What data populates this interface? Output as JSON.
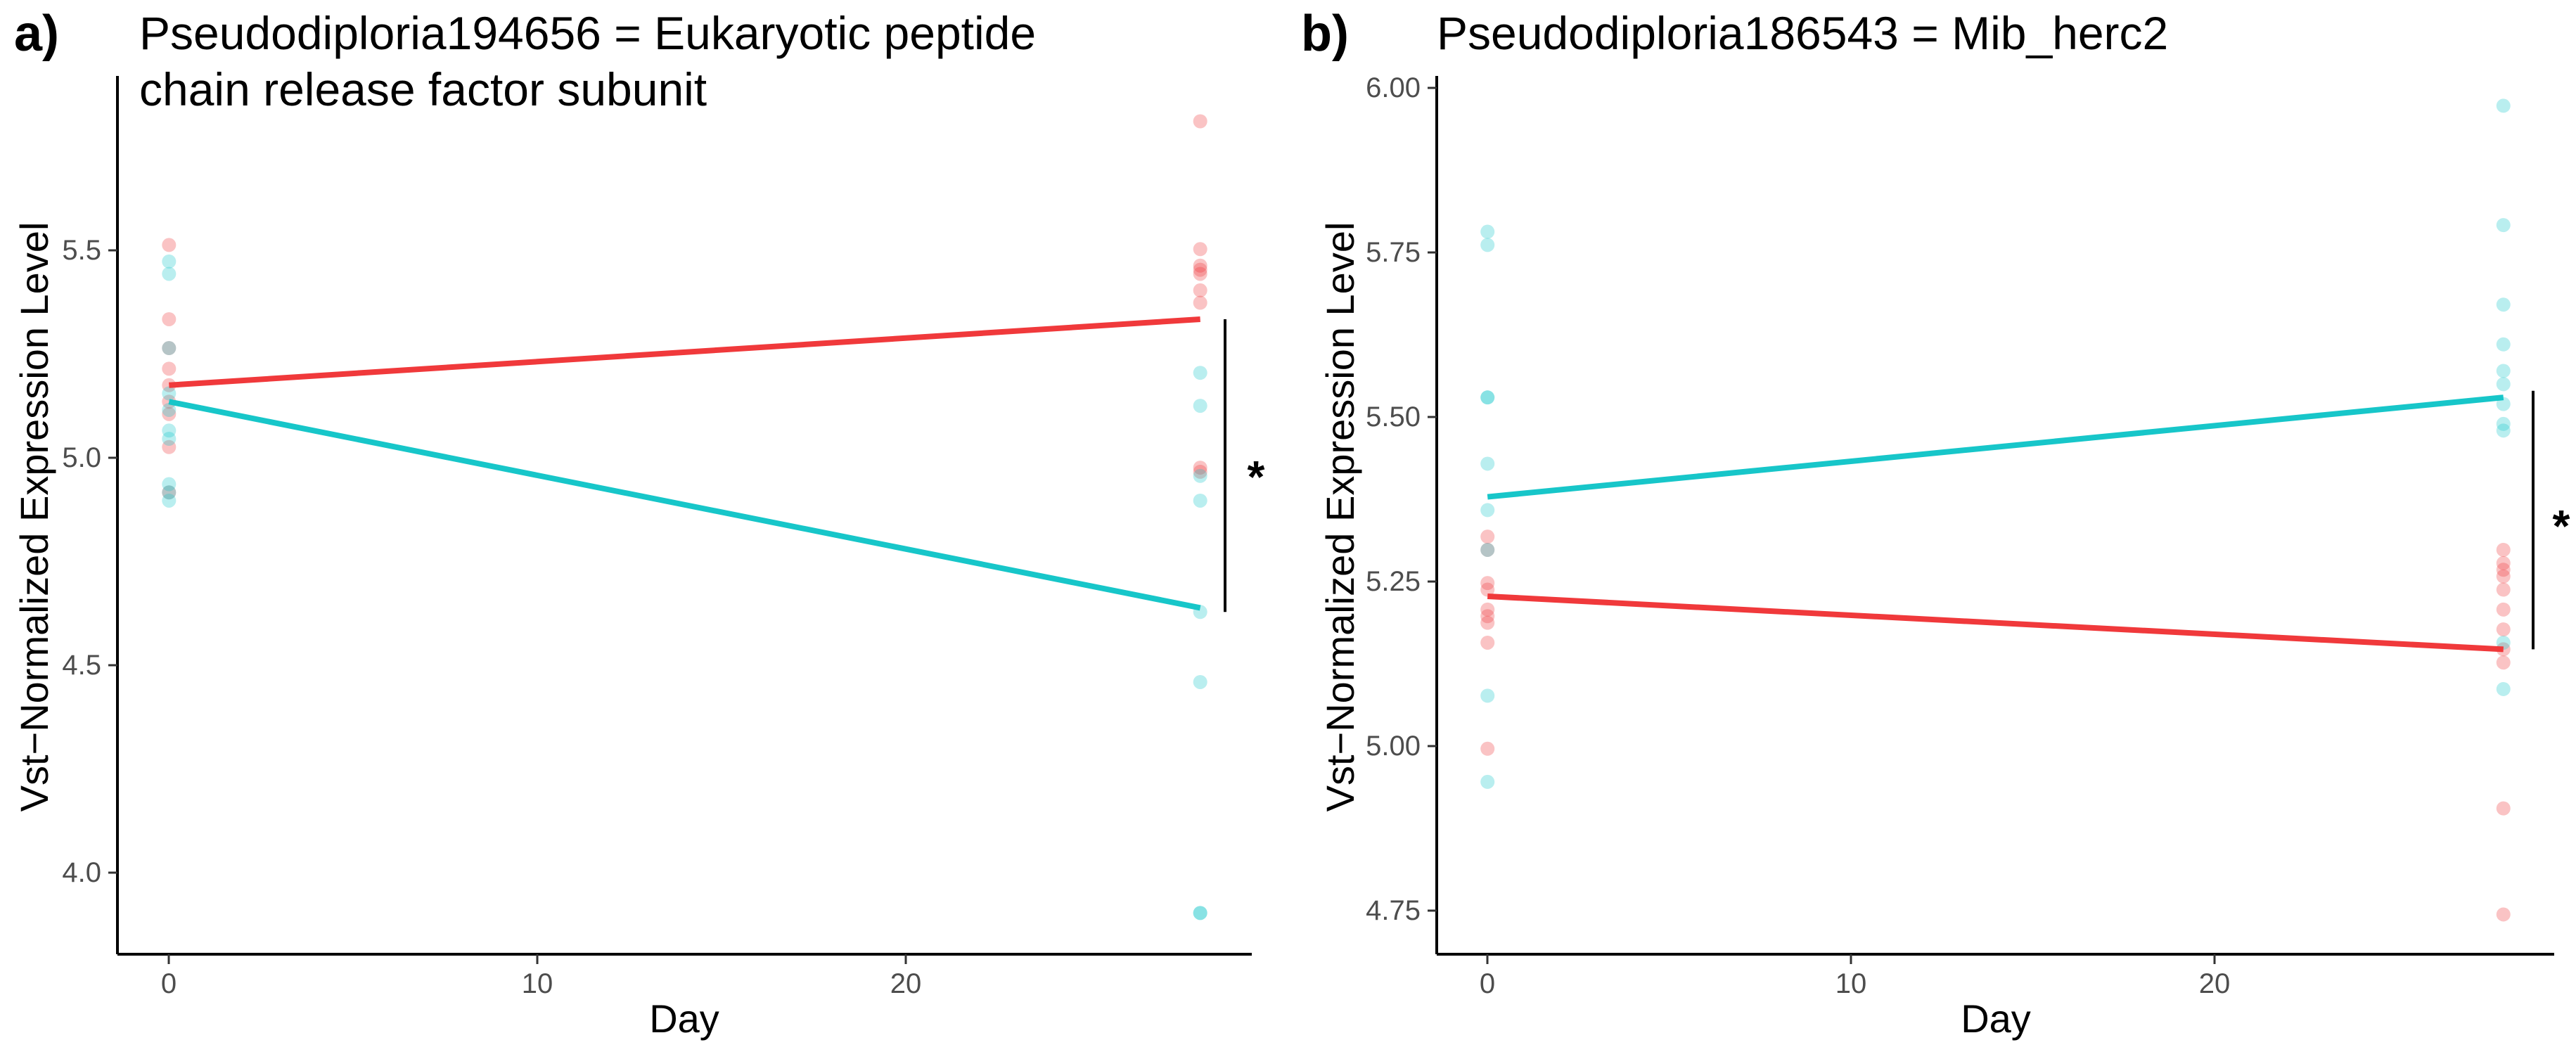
{
  "colors": {
    "treatment_a": "#F0393B",
    "treatment_b": "#17C6C9",
    "axis": "#000000"
  },
  "chart_data": [
    {
      "type": "scatter",
      "panel_label": "a)",
      "title_lines": [
        "Pseudodiploria194656 = Eukaryotic peptide",
        "chain release factor subunit"
      ],
      "xlabel": "Day",
      "ylabel": "Vst−Normalized Expression Level",
      "xticks": [
        "0",
        "10",
        "20"
      ],
      "yticks": [
        "4.0",
        "4.5",
        "5.0",
        "5.5"
      ],
      "xlim": [
        -1.4,
        29.4
      ],
      "ylim": [
        3.8,
        5.93
      ],
      "significance_label": "*",
      "bracket_range": [
        4.63,
        5.34
      ],
      "series": [
        {
          "color": "#F0393B",
          "points": [
            [
              0,
              5.52
            ],
            [
              0,
              5.34
            ],
            [
              0,
              5.27
            ],
            [
              0,
              5.22
            ],
            [
              0,
              5.18
            ],
            [
              0,
              5.14
            ],
            [
              0,
              5.11
            ],
            [
              0,
              5.03
            ],
            [
              0,
              4.92
            ],
            [
              28,
              5.82
            ],
            [
              28,
              5.51
            ],
            [
              28,
              5.47
            ],
            [
              28,
              5.46
            ],
            [
              28,
              5.45
            ],
            [
              28,
              5.41
            ],
            [
              28,
              5.38
            ],
            [
              28,
              4.98
            ],
            [
              28,
              4.97
            ]
          ],
          "trend": [
            [
              0,
              5.18
            ],
            [
              28,
              5.34
            ]
          ]
        },
        {
          "color": "#17C6C9",
          "points": [
            [
              0,
              5.48
            ],
            [
              0,
              5.45
            ],
            [
              0,
              5.27
            ],
            [
              0,
              5.16
            ],
            [
              0,
              5.12
            ],
            [
              0,
              5.07
            ],
            [
              0,
              5.05
            ],
            [
              0,
              4.94
            ],
            [
              0,
              4.92
            ],
            [
              0,
              4.9
            ],
            [
              28,
              5.21
            ],
            [
              28,
              5.13
            ],
            [
              28,
              4.96
            ],
            [
              28,
              4.9
            ],
            [
              28,
              4.63
            ],
            [
              28,
              4.46
            ],
            [
              28,
              3.9
            ],
            [
              28,
              3.9
            ]
          ],
          "trend": [
            [
              0,
              5.14
            ],
            [
              28,
              4.64
            ]
          ]
        }
      ]
    },
    {
      "type": "scatter",
      "panel_label": "b)",
      "title_lines": [
        "Pseudodiploria186543 = Mib_herc2"
      ],
      "xlabel": "Day",
      "ylabel": "Vst−Normalized Expression Level",
      "xticks": [
        "0",
        "10",
        "20"
      ],
      "yticks": [
        "4.75",
        "5.00",
        "5.25",
        "5.50",
        "5.75",
        "6.00"
      ],
      "xlim": [
        -1.4,
        29.4
      ],
      "ylim": [
        4.68,
        6.005
      ],
      "significance_label": "*",
      "bracket_range": [
        5.14,
        5.53
      ],
      "series": [
        {
          "color": "#F0393B",
          "points": [
            [
              0,
              5.29
            ],
            [
              0,
              5.24
            ],
            [
              0,
              5.23
            ],
            [
              0,
              5.2
            ],
            [
              0,
              5.19
            ],
            [
              0,
              5.18
            ],
            [
              0,
              5.15
            ],
            [
              0,
              5.31
            ],
            [
              0,
              4.99
            ],
            [
              28,
              5.29
            ],
            [
              28,
              5.27
            ],
            [
              28,
              5.26
            ],
            [
              28,
              5.25
            ],
            [
              28,
              5.23
            ],
            [
              28,
              5.2
            ],
            [
              28,
              5.17
            ],
            [
              28,
              5.14
            ],
            [
              28,
              5.12
            ],
            [
              28,
              4.9
            ],
            [
              28,
              4.74
            ]
          ],
          "trend": [
            [
              0,
              5.22
            ],
            [
              28,
              5.14
            ]
          ]
        },
        {
          "color": "#17C6C9",
          "points": [
            [
              0,
              5.77
            ],
            [
              0,
              5.75
            ],
            [
              0,
              5.52
            ],
            [
              0,
              5.52
            ],
            [
              0,
              5.42
            ],
            [
              0,
              5.35
            ],
            [
              0,
              5.29
            ],
            [
              0,
              5.07
            ],
            [
              0,
              4.94
            ],
            [
              28,
              5.96
            ],
            [
              28,
              5.78
            ],
            [
              28,
              5.66
            ],
            [
              28,
              5.6
            ],
            [
              28,
              5.56
            ],
            [
              28,
              5.54
            ],
            [
              28,
              5.51
            ],
            [
              28,
              5.48
            ],
            [
              28,
              5.47
            ],
            [
              28,
              5.15
            ],
            [
              28,
              5.08
            ]
          ],
          "trend": [
            [
              0,
              5.37
            ],
            [
              28,
              5.52
            ]
          ]
        }
      ]
    }
  ]
}
